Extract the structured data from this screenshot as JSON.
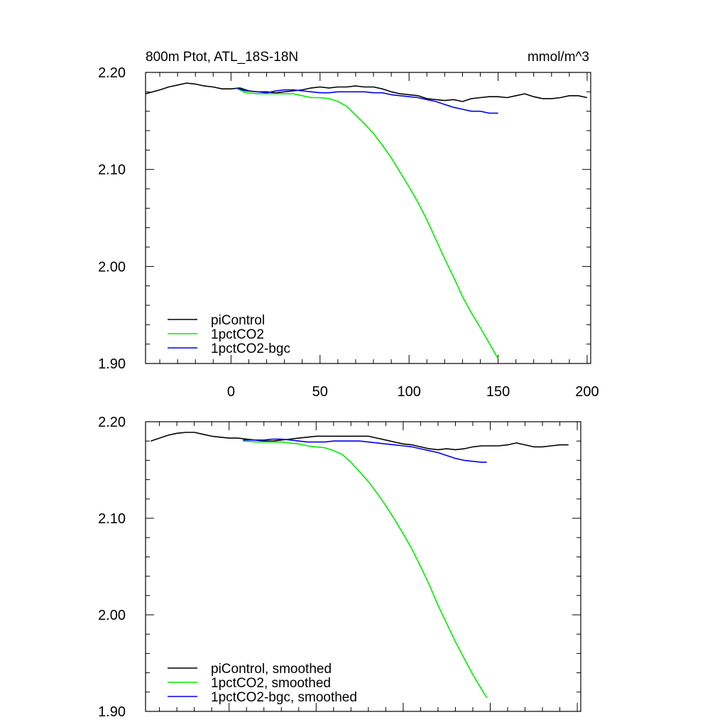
{
  "chart_data": [
    {
      "type": "line",
      "title": "800m Ptot, ATL_18S-18N",
      "units": "mmol/m^3",
      "ylim": [
        1.9,
        2.2
      ],
      "xlim": [
        -48,
        202
      ],
      "yticks": [
        "2.20",
        "2.10",
        "2.00",
        "1.90"
      ],
      "xticks": [
        "0",
        "50",
        "100",
        "150",
        "200"
      ],
      "legend_position": "bottom-left",
      "series": [
        {
          "name": "piControl",
          "color": "#000000",
          "x": [
            -48,
            -40,
            -35,
            -30,
            -25,
            -20,
            -15,
            -10,
            -5,
            0,
            5,
            10,
            15,
            20,
            25,
            30,
            35,
            40,
            45,
            50,
            55,
            60,
            65,
            70,
            75,
            80,
            85,
            90,
            95,
            100,
            105,
            110,
            115,
            120,
            125,
            130,
            135,
            140,
            145,
            150,
            155,
            160,
            165,
            170,
            175,
            180,
            185,
            190,
            195,
            200
          ],
          "y": [
            2.178,
            2.182,
            2.185,
            2.187,
            2.189,
            2.188,
            2.186,
            2.185,
            2.183,
            2.183,
            2.184,
            2.181,
            2.18,
            2.18,
            2.179,
            2.18,
            2.181,
            2.182,
            2.184,
            2.185,
            2.184,
            2.185,
            2.185,
            2.186,
            2.185,
            2.185,
            2.183,
            2.18,
            2.178,
            2.177,
            2.176,
            2.173,
            2.172,
            2.171,
            2.172,
            2.17,
            2.173,
            2.174,
            2.175,
            2.175,
            2.174,
            2.176,
            2.178,
            2.175,
            2.173,
            2.173,
            2.174,
            2.176,
            2.176,
            2.174
          ]
        },
        {
          "name": "1pctCO2",
          "color": "#00ee00",
          "x": [
            3,
            8,
            15,
            20,
            25,
            30,
            35,
            40,
            45,
            50,
            55,
            60,
            65,
            70,
            75,
            80,
            85,
            90,
            95,
            100,
            105,
            110,
            115,
            120,
            125,
            130,
            135,
            140,
            145,
            150
          ],
          "y": [
            2.184,
            2.179,
            2.178,
            2.178,
            2.178,
            2.178,
            2.178,
            2.176,
            2.174,
            2.174,
            2.173,
            2.17,
            2.165,
            2.156,
            2.147,
            2.137,
            2.125,
            2.112,
            2.097,
            2.082,
            2.066,
            2.048,
            2.028,
            2.008,
            1.989,
            1.969,
            1.952,
            1.937,
            1.921,
            1.905
          ]
        },
        {
          "name": "1pctCO2-bgc",
          "color": "#0000ee",
          "x": [
            3,
            8,
            15,
            20,
            25,
            30,
            35,
            40,
            45,
            50,
            55,
            60,
            65,
            70,
            75,
            80,
            85,
            90,
            95,
            100,
            105,
            110,
            115,
            120,
            125,
            130,
            135,
            140,
            145,
            150
          ],
          "y": [
            2.184,
            2.181,
            2.18,
            2.179,
            2.181,
            2.182,
            2.182,
            2.181,
            2.18,
            2.179,
            2.179,
            2.18,
            2.18,
            2.18,
            2.18,
            2.179,
            2.179,
            2.177,
            2.176,
            2.175,
            2.174,
            2.172,
            2.17,
            2.167,
            2.164,
            2.162,
            2.16,
            2.16,
            2.158,
            2.158
          ]
        }
      ]
    },
    {
      "type": "line",
      "ylim": [
        1.9,
        2.2
      ],
      "xlim": [
        -48,
        202
      ],
      "yticks": [
        "2.20",
        "2.10",
        "2.00",
        "1.90"
      ],
      "legend_position": "bottom-left",
      "series": [
        {
          "name": "piControl, smoothed",
          "color": "#000000",
          "x": [
            -45,
            -40,
            -35,
            -30,
            -25,
            -20,
            -15,
            -10,
            -5,
            0,
            5,
            10,
            15,
            20,
            25,
            30,
            35,
            40,
            45,
            50,
            55,
            60,
            65,
            70,
            75,
            80,
            85,
            90,
            95,
            100,
            105,
            110,
            115,
            120,
            125,
            130,
            135,
            140,
            145,
            150,
            155,
            160,
            165,
            170,
            175,
            180,
            185,
            190,
            195
          ],
          "y": [
            2.18,
            2.183,
            2.186,
            2.188,
            2.189,
            2.189,
            2.187,
            2.185,
            2.184,
            2.183,
            2.183,
            2.182,
            2.181,
            2.18,
            2.18,
            2.181,
            2.182,
            2.183,
            2.184,
            2.185,
            2.185,
            2.185,
            2.185,
            2.185,
            2.185,
            2.185,
            2.183,
            2.181,
            2.179,
            2.177,
            2.176,
            2.174,
            2.172,
            2.171,
            2.172,
            2.171,
            2.172,
            2.174,
            2.175,
            2.175,
            2.175,
            2.176,
            2.178,
            2.176,
            2.174,
            2.174,
            2.175,
            2.176,
            2.176
          ]
        },
        {
          "name": "1pctCO2, smoothed",
          "color": "#00ee00",
          "x": [
            8,
            15,
            20,
            25,
            30,
            35,
            40,
            45,
            50,
            55,
            60,
            65,
            70,
            75,
            80,
            85,
            90,
            95,
            100,
            105,
            110,
            115,
            120,
            125,
            130,
            135,
            140,
            145,
            148
          ],
          "y": [
            2.18,
            2.179,
            2.179,
            2.179,
            2.179,
            2.178,
            2.177,
            2.175,
            2.174,
            2.173,
            2.17,
            2.166,
            2.158,
            2.148,
            2.138,
            2.126,
            2.113,
            2.099,
            2.084,
            2.068,
            2.05,
            2.031,
            2.01,
            1.991,
            1.972,
            1.955,
            1.938,
            1.923,
            1.914
          ]
        },
        {
          "name": "1pctCO2-bgc, smoothed",
          "color": "#0000ee",
          "x": [
            8,
            15,
            20,
            25,
            30,
            35,
            40,
            45,
            50,
            55,
            60,
            65,
            70,
            75,
            80,
            85,
            90,
            95,
            100,
            105,
            110,
            115,
            120,
            125,
            130,
            135,
            140,
            145,
            148
          ],
          "y": [
            2.181,
            2.181,
            2.181,
            2.182,
            2.182,
            2.181,
            2.18,
            2.179,
            2.179,
            2.179,
            2.18,
            2.18,
            2.18,
            2.18,
            2.179,
            2.178,
            2.177,
            2.176,
            2.175,
            2.174,
            2.172,
            2.17,
            2.168,
            2.165,
            2.162,
            2.16,
            2.159,
            2.158,
            2.158
          ]
        }
      ]
    }
  ]
}
